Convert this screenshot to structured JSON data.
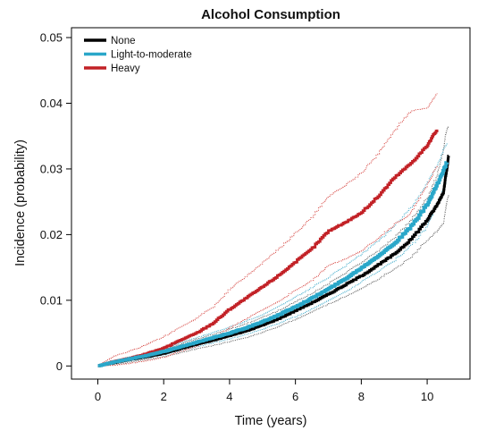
{
  "chart_data": {
    "type": "line",
    "title": "Alcohol Consumption",
    "xlabel": "Time (years)",
    "ylabel": "Incidence (probability)",
    "xlim": [
      -0.8,
      11.3
    ],
    "ylim": [
      -0.002,
      0.0515
    ],
    "xticks": [
      0,
      2,
      4,
      6,
      8,
      10
    ],
    "xtick_labels": [
      "0",
      "2",
      "4",
      "6",
      "8",
      "10"
    ],
    "yticks": [
      0,
      0.01,
      0.02,
      0.03,
      0.04,
      0.05
    ],
    "ytick_labels": [
      "0",
      "0.01",
      "0.02",
      "0.03",
      "0.04",
      "0.05"
    ],
    "legend_position": "top-left",
    "grid": false,
    "series": [
      {
        "name": "None",
        "color": "#000000",
        "x": [
          0,
          0.5,
          1,
          1.5,
          2,
          2.5,
          3,
          3.5,
          4,
          4.5,
          5,
          5.5,
          6,
          6.5,
          7,
          7.5,
          8,
          8.5,
          9,
          9.5,
          10,
          10.3,
          10.5,
          10.55,
          10.6,
          10.65
        ],
        "y": [
          0,
          0.0005,
          0.001,
          0.0014,
          0.0019,
          0.0026,
          0.0033,
          0.0039,
          0.0046,
          0.0053,
          0.0062,
          0.0072,
          0.0084,
          0.0096,
          0.0109,
          0.0123,
          0.0137,
          0.0153,
          0.017,
          0.0192,
          0.0222,
          0.0245,
          0.0265,
          0.0285,
          0.03,
          0.032
        ],
        "ci_upper": [
          0,
          0.0008,
          0.0014,
          0.0019,
          0.0025,
          0.0033,
          0.0041,
          0.0048,
          0.0056,
          0.0064,
          0.0074,
          0.0085,
          0.0098,
          0.0111,
          0.0125,
          0.0141,
          0.0157,
          0.0175,
          0.0195,
          0.0221,
          0.0255,
          0.029,
          0.033,
          0.035,
          0.036,
          0.0365
        ],
        "ci_lower": [
          0,
          0.0002,
          0.0006,
          0.001,
          0.0014,
          0.002,
          0.0026,
          0.0031,
          0.0037,
          0.0043,
          0.0051,
          0.006,
          0.0071,
          0.0082,
          0.0094,
          0.0106,
          0.0118,
          0.0132,
          0.0147,
          0.0165,
          0.0191,
          0.0205,
          0.0218,
          0.0235,
          0.025,
          0.026
        ]
      },
      {
        "name": "Light-to-moderate",
        "color": "#2aa7c9",
        "x": [
          0,
          0.5,
          1,
          1.5,
          2,
          2.5,
          3,
          3.5,
          4,
          4.5,
          5,
          5.5,
          6,
          6.5,
          7,
          7.5,
          8,
          8.5,
          9,
          9.5,
          10,
          10.3,
          10.6
        ],
        "y": [
          0,
          0.0006,
          0.0011,
          0.0016,
          0.0022,
          0.0029,
          0.0036,
          0.0043,
          0.005,
          0.0058,
          0.0067,
          0.0078,
          0.009,
          0.0103,
          0.0117,
          0.0132,
          0.0149,
          0.0167,
          0.0186,
          0.0211,
          0.0245,
          0.0275,
          0.031
        ],
        "ci_upper": [
          0,
          0.0008,
          0.0014,
          0.002,
          0.0027,
          0.0035,
          0.0043,
          0.0051,
          0.0059,
          0.0068,
          0.0078,
          0.0091,
          0.0105,
          0.0119,
          0.0135,
          0.0152,
          0.017,
          0.019,
          0.0212,
          0.024,
          0.0278,
          0.0305,
          0.034
        ],
        "ci_lower": [
          0,
          0.0004,
          0.0008,
          0.0012,
          0.0017,
          0.0023,
          0.0029,
          0.0035,
          0.0041,
          0.0048,
          0.0056,
          0.0065,
          0.0075,
          0.0087,
          0.0099,
          0.0112,
          0.0128,
          0.0144,
          0.016,
          0.0182,
          0.0212,
          0.0245,
          0.028
        ]
      },
      {
        "name": "Heavy",
        "color": "#c22126",
        "x": [
          0,
          0.5,
          1,
          1.5,
          2,
          2.5,
          3,
          3.5,
          4,
          4.5,
          5,
          5.5,
          6,
          6.5,
          7,
          7.5,
          8,
          8.5,
          9,
          9.5,
          10,
          10.3
        ],
        "y": [
          0,
          0.0007,
          0.0012,
          0.0019,
          0.0027,
          0.0039,
          0.005,
          0.0065,
          0.0086,
          0.0103,
          0.012,
          0.0138,
          0.0158,
          0.0178,
          0.0205,
          0.0218,
          0.0233,
          0.0257,
          0.0286,
          0.0308,
          0.0335,
          0.036
        ],
        "ci_upper": [
          0,
          0.0015,
          0.0023,
          0.0033,
          0.0044,
          0.0058,
          0.0073,
          0.009,
          0.0116,
          0.0136,
          0.0157,
          0.0178,
          0.0202,
          0.0226,
          0.0258,
          0.0274,
          0.0293,
          0.0322,
          0.0358,
          0.0388,
          0.0393,
          0.0415
        ],
        "ci_lower": [
          0,
          0.0001,
          0.0004,
          0.0008,
          0.0013,
          0.0022,
          0.003,
          0.0042,
          0.0058,
          0.0071,
          0.0085,
          0.0099,
          0.0115,
          0.013,
          0.0152,
          0.0163,
          0.0175,
          0.0194,
          0.0215,
          0.0232,
          0.0275,
          0.0305
        ]
      }
    ]
  }
}
